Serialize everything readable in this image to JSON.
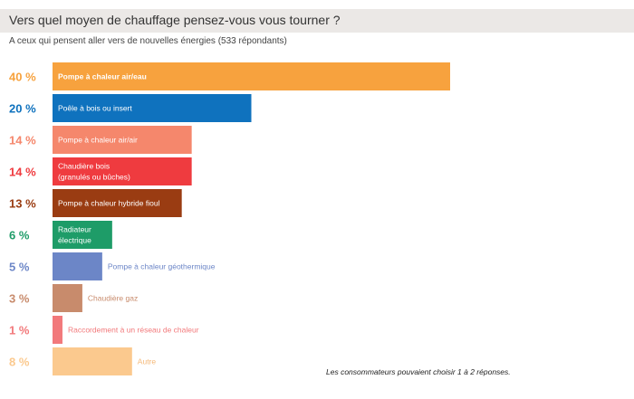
{
  "chart_data": {
    "type": "bar",
    "orientation": "horizontal",
    "title": "Vers quel moyen de chauffage pensez-vous vous tourner ?",
    "subtitle": "A ceux qui pensent aller vers de nouvelles énergies (533 répondants)",
    "footnote": "Les consommateurs pouvaient choisir 1 à 2 réponses.",
    "xlim": [
      0,
      40
    ],
    "grid": false,
    "bars": [
      {
        "value": 40,
        "value_label": "40 %",
        "label_lines": [
          "Pompe à chaleur air/eau"
        ],
        "color": "#f7a23e",
        "label_inside": true,
        "label_color": "#ffffff",
        "label_bold": true
      },
      {
        "value": 20,
        "value_label": "20 %",
        "label_lines": [
          "Poêle à bois ou insert"
        ],
        "color": "#0f72be",
        "label_inside": true,
        "label_color": "#ffffff"
      },
      {
        "value": 14,
        "value_label": "14 %",
        "label_lines": [
          "Pompe à chaleur air/air"
        ],
        "color": "#f5876c",
        "label_inside": true,
        "label_color": "#ffffff"
      },
      {
        "value": 14,
        "value_label": "14 %",
        "label_lines": [
          "Chaudière bois",
          "(granulés ou bûches)"
        ],
        "color": "#ef3b3f",
        "label_inside": true,
        "label_color": "#ffffff"
      },
      {
        "value": 13,
        "value_label": "13 %",
        "label_lines": [
          "Pompe à chaleur hybride fioul"
        ],
        "color": "#9a3c12",
        "label_inside": true,
        "label_color": "#ffffff"
      },
      {
        "value": 6,
        "value_label": "6 %",
        "label_lines": [
          "Radiateur",
          "électrique"
        ],
        "color": "#1e9c68",
        "label_inside": true,
        "label_color": "#ffffff"
      },
      {
        "value": 5,
        "value_label": "5 %",
        "label_lines": [
          "Pompe à chaleur géothermique"
        ],
        "color": "#6c86c7",
        "label_inside": false,
        "label_color": "#6c86c7"
      },
      {
        "value": 3,
        "value_label": "3 %",
        "label_lines": [
          "Chaudière gaz"
        ],
        "color": "#c88b6c",
        "label_inside": false,
        "label_color": "#c88b6c"
      },
      {
        "value": 1,
        "value_label": "1 %",
        "label_lines": [
          "Raccordement à un réseau de chaleur"
        ],
        "color": "#f2797b",
        "label_inside": false,
        "label_color": "#f2797b"
      },
      {
        "value": 8,
        "value_label": "8 %",
        "label_lines": [
          "Autre"
        ],
        "color": "#fbc98e",
        "label_inside": false,
        "label_color": "#f5b979"
      }
    ]
  }
}
